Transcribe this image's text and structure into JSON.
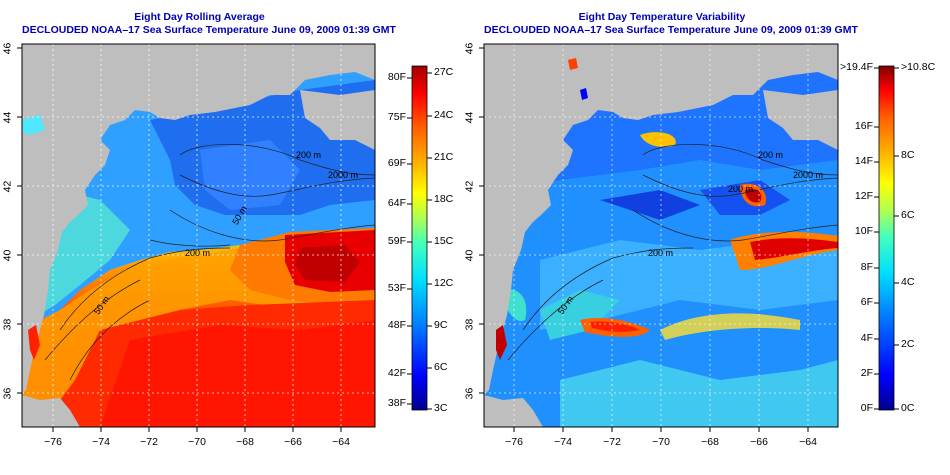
{
  "colors": {
    "title": "#0000b4",
    "land": "#bebebe",
    "palette": [
      "#00008f",
      "#0000ff",
      "#0080ff",
      "#00e0ff",
      "#40ffc0",
      "#b0ff50",
      "#ffff00",
      "#ffb000",
      "#ff6000",
      "#ff0000",
      "#b00000",
      "#800000"
    ]
  },
  "left_panel": {
    "title_line1": "Eight Day Rolling Average",
    "title_line2": "DECLOUDED NOAA–17 Sea Surface Temperature June 09, 2009 01:39 GMT",
    "contours": [
      "200 m",
      "2000 m",
      "200 m",
      "50 m",
      "50 m"
    ],
    "colorbar_f": [
      "80F",
      "75F",
      "69F",
      "64F",
      "59F",
      "53F",
      "48F",
      "42F",
      "38F"
    ],
    "colorbar_c": [
      "27C",
      "24C",
      "21C",
      "18C",
      "15C",
      "12C",
      "9C",
      "6C",
      "3C"
    ]
  },
  "right_panel": {
    "title_line1": "Eight Day Temperature Variability",
    "title_line2": "DECLOUDED NOAA–17 Sea Surface Temperature June 09, 2009 01:39 GMT",
    "contours": [
      "200 m",
      "2000 m",
      "200 m",
      "200 m",
      "50 m"
    ],
    "colorbar_f": [
      ">19.4F",
      "16F",
      "14F",
      "12F",
      "10F",
      "8F",
      "6F",
      "4F",
      "2F",
      "0F"
    ],
    "colorbar_c": [
      ">10.8C",
      "8C",
      "6C",
      "4C",
      "2C",
      "0C"
    ]
  },
  "axes": {
    "lat_ticks": [
      "46",
      "44",
      "42",
      "40",
      "38",
      "36"
    ],
    "lon_ticks": [
      "−76",
      "−74",
      "−72",
      "−70",
      "−68",
      "−66",
      "−64"
    ]
  }
}
